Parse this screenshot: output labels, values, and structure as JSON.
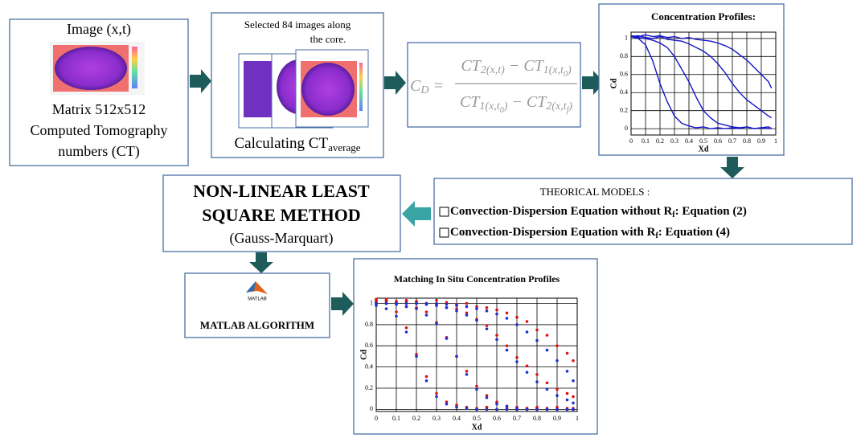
{
  "box_a": {
    "title": "Image (x,t)",
    "lines": [
      "Matrix 512x512",
      "Computed Tomography",
      "numbers (CT)"
    ]
  },
  "box_b": {
    "lines": [
      "Selected 84 images along",
      "the core."
    ],
    "label": "Calculating CT",
    "label_sub": "average"
  },
  "formula": {
    "lhs": [
      {
        "text": "C"
      },
      {
        "sub": "D"
      },
      {
        "text": " ="
      }
    ],
    "numerator": [
      {
        "text": "CT"
      },
      {
        "sub": "2(x,t)"
      },
      {
        "text": " − CT"
      },
      {
        "sub": "1(x,t"
      },
      {
        "subsub": "0"
      },
      {
        "sub": ")"
      }
    ],
    "denominator": [
      {
        "text": "CT"
      },
      {
        "sub": "1(x,t"
      },
      {
        "subsub": "0"
      },
      {
        "sub": ")"
      },
      {
        "text": " − CT"
      },
      {
        "sub": "2(x,t"
      },
      {
        "subsub": "f"
      },
      {
        "sub": ")"
      }
    ]
  },
  "models": {
    "title": "THEORICAL MODELS :",
    "items": [
      {
        "text": "Convection-Dispersion Equation without R",
        "sub": "f",
        "tail": ": Equation (2)"
      },
      {
        "text": "Convection-Dispersion Equation with R",
        "sub": "f",
        "tail": ": Equation (4)"
      }
    ]
  },
  "method": {
    "lines": [
      "NON-LINEAR LEAST",
      "SQUARE METHOD"
    ],
    "subtitle": "(Gauss-Marquart)"
  },
  "matlab": {
    "logo_text": "MATLAB",
    "label": "MATLAB ALGORITHM"
  },
  "charts": [
    {
      "type": "line",
      "title": "Concentration Profiles:",
      "xlabel": "Xd",
      "ylabel": "Cd",
      "grid": true,
      "xlim": [
        0,
        1
      ],
      "ylim": [
        -0.07,
        1.07
      ],
      "xticks": [
        0,
        0.1,
        0.2,
        0.3,
        0.4,
        0.5,
        0.6,
        0.7,
        0.8,
        0.9,
        1
      ],
      "yticks": [
        0,
        0.2,
        0.4,
        0.6,
        0.8,
        1
      ],
      "x": [
        0,
        0.05,
        0.1,
        0.15,
        0.2,
        0.25,
        0.3,
        0.35,
        0.4,
        0.45,
        0.5,
        0.55,
        0.6,
        0.65,
        0.7,
        0.75,
        0.8,
        0.85,
        0.9,
        0.95,
        0.97
      ],
      "series": [
        {
          "color": "#1414c8",
          "values": [
            1.02,
            1.0,
            0.93,
            0.75,
            0.5,
            0.3,
            0.14,
            0.06,
            0.03,
            0.01,
            0.02,
            0,
            0.01,
            0,
            0.01,
            0,
            0.02,
            0,
            0.01,
            0,
            0.01
          ]
        },
        {
          "color": "#1414c8",
          "values": [
            1.03,
            1.01,
            1.0,
            0.98,
            0.95,
            0.9,
            0.8,
            0.66,
            0.52,
            0.35,
            0.2,
            0.12,
            0.06,
            0.04,
            0.02,
            0.01,
            0.02,
            0,
            0.01,
            0.02,
            0
          ]
        },
        {
          "color": "#1414c8",
          "values": [
            1.02,
            1.03,
            1.01,
            1.0,
            1.02,
            0.99,
            0.98,
            0.97,
            0.94,
            0.9,
            0.86,
            0.8,
            0.72,
            0.62,
            0.5,
            0.4,
            0.32,
            0.26,
            0.2,
            0.14,
            0.12
          ]
        },
        {
          "color": "#1414c8",
          "values": [
            1.03,
            1.02,
            1.04,
            1.02,
            1.03,
            1.01,
            1.02,
            1.0,
            1.01,
            0.99,
            0.98,
            0.97,
            0.95,
            0.92,
            0.88,
            0.82,
            0.76,
            0.68,
            0.6,
            0.52,
            0.45
          ]
        }
      ]
    },
    {
      "type": "scatter",
      "title": "Matching In Situ Concentration Profiles",
      "xlabel": "Xd",
      "ylabel": "Cd",
      "grid": true,
      "xlim": [
        0,
        1
      ],
      "ylim": [
        -0.02,
        1.05
      ],
      "xticks": [
        0,
        0.1,
        0.2,
        0.3,
        0.4,
        0.5,
        0.6,
        0.7,
        0.8,
        0.9,
        1
      ],
      "yticks": [
        0,
        0.2,
        0.4,
        0.6,
        0.8,
        1
      ],
      "x": [
        0,
        0.05,
        0.1,
        0.15,
        0.2,
        0.25,
        0.3,
        0.35,
        0.4,
        0.45,
        0.5,
        0.55,
        0.6,
        0.65,
        0.7,
        0.75,
        0.8,
        0.85,
        0.9,
        0.95,
        0.98
      ],
      "series": [
        {
          "color": "#e01010",
          "values": [
            1.01,
            1.03,
            0.92,
            0.77,
            0.52,
            0.31,
            0.15,
            0.07,
            0.04,
            0.02,
            0.01,
            0.02,
            0,
            0.01,
            0,
            0.01,
            0.01,
            0,
            0.02,
            0,
            0.01
          ]
        },
        {
          "color": "#e01010",
          "values": [
            1.04,
            1.0,
            1.02,
            0.97,
            0.96,
            0.92,
            0.82,
            0.68,
            0.5,
            0.36,
            0.22,
            0.13,
            0.07,
            0.03,
            0.02,
            0.01,
            0.02,
            0.01,
            0,
            0.01,
            0
          ]
        },
        {
          "color": "#e01010",
          "values": [
            1.03,
            1.02,
            1.0,
            1.02,
            1.01,
            1.0,
            0.99,
            0.96,
            0.95,
            0.91,
            0.85,
            0.79,
            0.7,
            0.6,
            0.49,
            0.41,
            0.33,
            0.25,
            0.19,
            0.15,
            0.12
          ]
        },
        {
          "color": "#e01010",
          "values": [
            1.02,
            1.04,
            1.01,
            1.03,
            1.02,
            1.0,
            1.03,
            1.01,
            0.99,
            1.0,
            0.97,
            0.96,
            0.94,
            0.91,
            0.87,
            0.83,
            0.75,
            0.7,
            0.6,
            0.53,
            0.46
          ]
        },
        {
          "color": "#2030d0",
          "values": [
            0.98,
            0.95,
            0.88,
            0.73,
            0.5,
            0.27,
            0.12,
            0.05,
            0.02,
            0.01,
            0,
            0,
            0,
            0,
            0,
            0,
            0,
            0,
            0,
            0,
            0
          ]
        },
        {
          "color": "#2030d0",
          "values": [
            1.0,
            1.0,
            0.99,
            0.97,
            0.95,
            0.89,
            0.81,
            0.67,
            0.5,
            0.33,
            0.19,
            0.11,
            0.05,
            0.03,
            0.01,
            0,
            0,
            0,
            0,
            0,
            0
          ]
        },
        {
          "color": "#2030d0",
          "values": [
            1,
            1,
            1,
            1,
            1,
            0.99,
            0.98,
            0.96,
            0.93,
            0.89,
            0.84,
            0.76,
            0.66,
            0.56,
            0.45,
            0.35,
            0.26,
            0.19,
            0.13,
            0.09,
            0.06
          ]
        },
        {
          "color": "#2030d0",
          "values": [
            1,
            1,
            1,
            1,
            1,
            1,
            1,
            0.99,
            0.98,
            0.97,
            0.95,
            0.93,
            0.9,
            0.86,
            0.8,
            0.73,
            0.65,
            0.56,
            0.46,
            0.36,
            0.27
          ]
        }
      ]
    }
  ]
}
